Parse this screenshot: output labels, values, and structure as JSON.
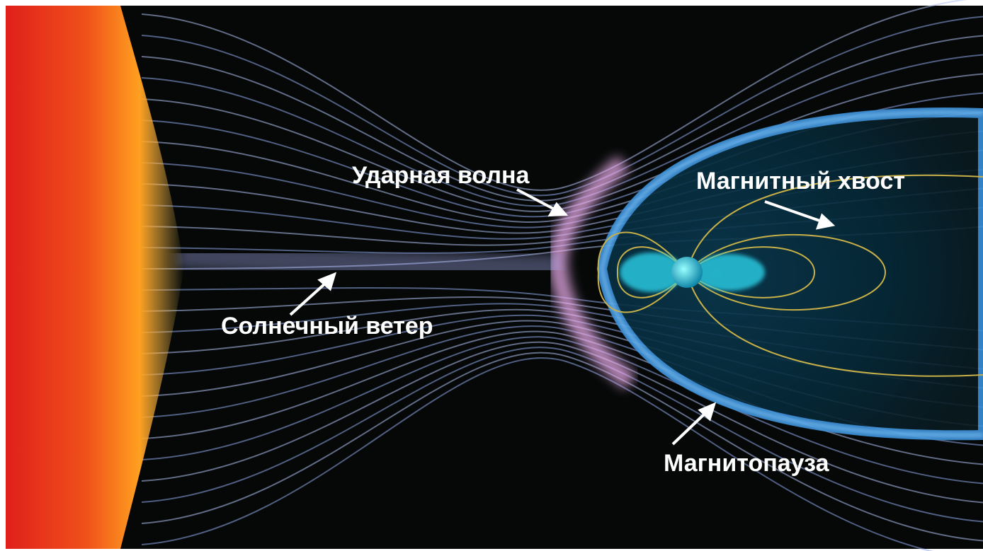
{
  "annotations": [
    {
      "text": "Ударная волна"
    },
    {
      "text": "Магнитный хвост"
    },
    {
      "text": "Солнечный ветер"
    },
    {
      "text": "Магнитопауза"
    }
  ]
}
